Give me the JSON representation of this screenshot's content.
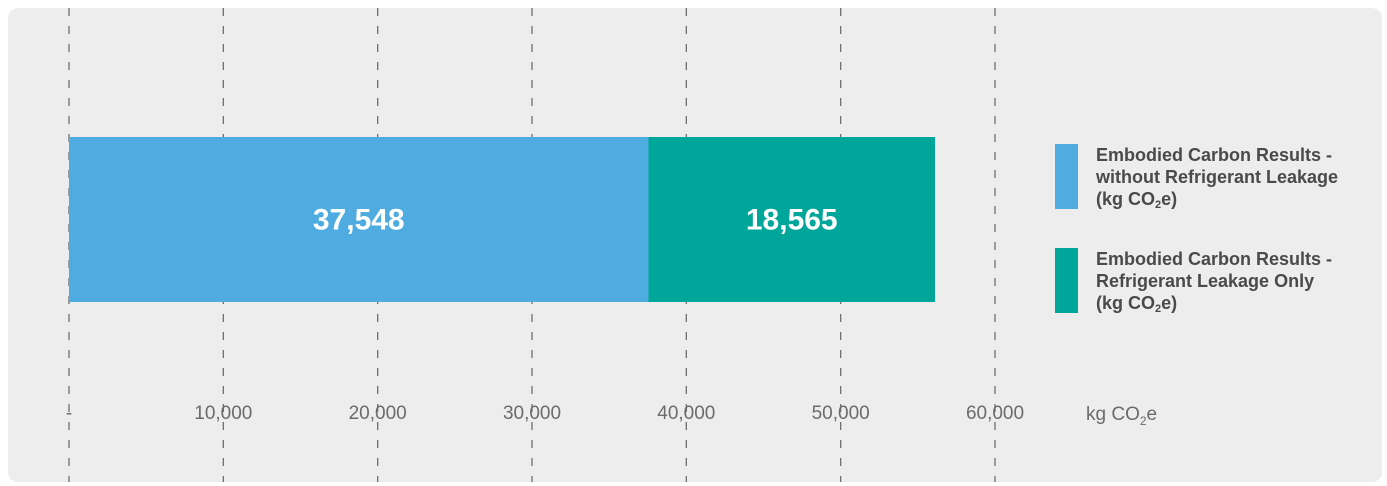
{
  "chart_data": {
    "type": "bar",
    "orientation": "horizontal",
    "stacked": true,
    "categories": [
      ""
    ],
    "series": [
      {
        "name": "Embodied Carbon Results - without Refrigerant Leakage (kg CO2e)",
        "legend_lines": [
          "Embodied Carbon Results -",
          "without Refrigerant Leakage",
          "(kg CO",
          "2",
          "e)"
        ],
        "values": [
          37548
        ],
        "label": "37,548",
        "color": "#4FACE0"
      },
      {
        "name": "Embodied Carbon Results - Refrigerant Leakage Only (kg CO2e)",
        "legend_lines": [
          "Embodied Carbon Results -",
          "Refrigerant Leakage Only",
          "(kg CO",
          "2",
          "e)"
        ],
        "values": [
          18565
        ],
        "label": "18,565",
        "color": "#00A699"
      }
    ],
    "xlim": [
      0,
      60000
    ],
    "xticks": [
      0,
      10000,
      20000,
      30000,
      40000,
      50000,
      60000
    ],
    "xtick_labels": [
      "-",
      "10,000",
      "20,000",
      "30,000",
      "40,000",
      "50,000",
      "60,000"
    ],
    "xlabel_parts": [
      "kg CO",
      "2",
      "e"
    ],
    "grid": "vertical dashed",
    "legend_position": "right"
  }
}
